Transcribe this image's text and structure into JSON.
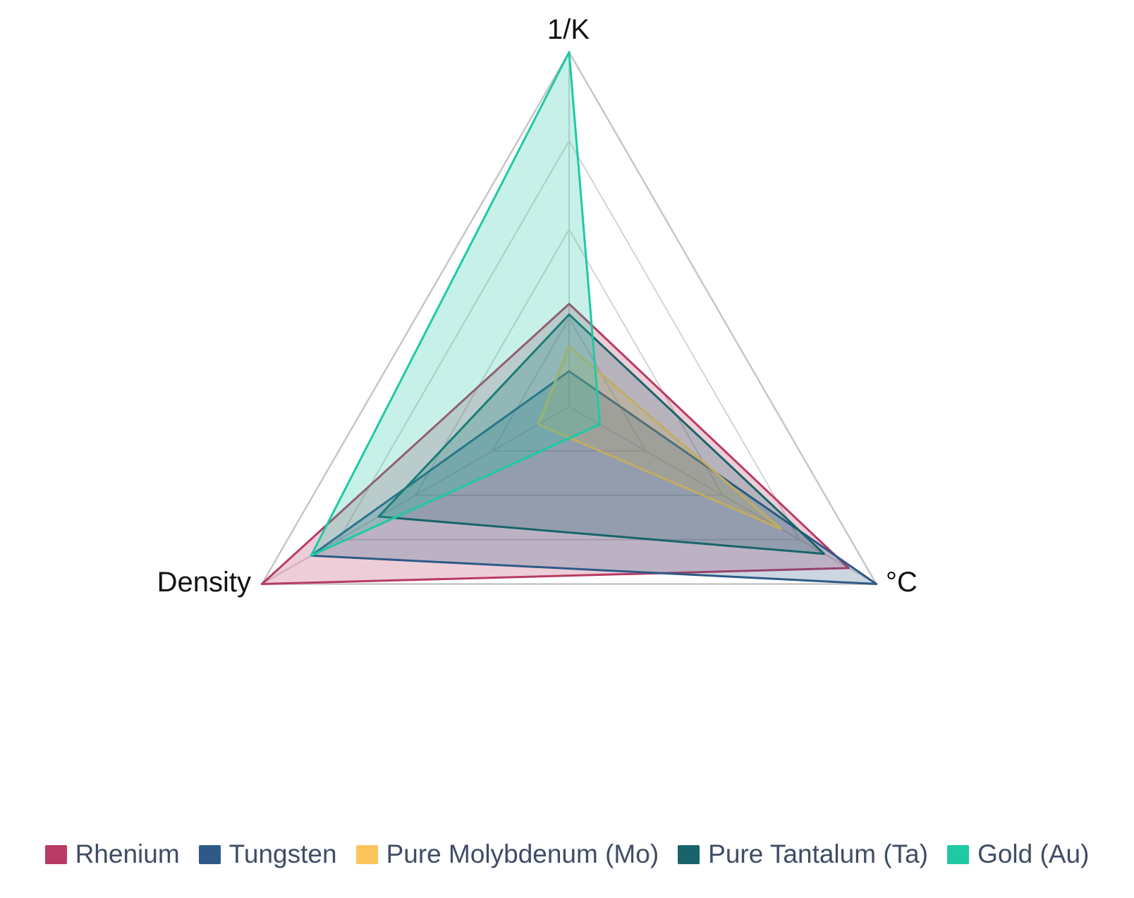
{
  "chart_data": {
    "type": "radar",
    "title": "",
    "axes": [
      "1/K",
      "Density",
      "°C"
    ],
    "r_range": [
      0,
      1
    ],
    "grid_levels": [
      0.25,
      0.5,
      0.75,
      1.0
    ],
    "grid_on": true,
    "legend_position": "bottom",
    "fill_opacity": 0.25,
    "grid_color_outer": "#c6c6c6",
    "grid_color_inner": "#d4d4d4",
    "axis_label_color": "#111111",
    "legend_text_color": "#3f4c66",
    "series": [
      {
        "name": "Rhenium",
        "color": "#b73b64",
        "values": [
          0.29,
          1.0,
          0.91
        ]
      },
      {
        "name": "Tungsten",
        "color": "#2e5a87",
        "values": [
          0.1,
          0.84,
          1.0
        ]
      },
      {
        "name": "Pure Molybdenum (Mo)",
        "color": "#fbc55c",
        "values": [
          0.17,
          0.1,
          0.69
        ]
      },
      {
        "name": "Pure Tantalum (Ta)",
        "color": "#19646a",
        "values": [
          0.26,
          0.62,
          0.83
        ]
      },
      {
        "name": "Gold (Au)",
        "color": "#1fc9a4",
        "values": [
          1.0,
          0.84,
          0.1
        ]
      }
    ]
  }
}
